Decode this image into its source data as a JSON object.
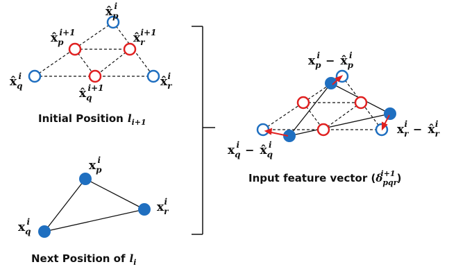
{
  "captions": {
    "initial": "Initial Position",
    "initial_sym": "l",
    "initial_sub": "i+1",
    "next": "Next Position of",
    "next_sym": "l",
    "next_sub": "i",
    "input": "Input feature vector (",
    "input_sym": "δ",
    "input_sub": "pqr",
    "input_sup": "i+1",
    "input_close": ")"
  },
  "labels": {
    "x": "x",
    "xhat": "x̂",
    "p": "p",
    "q": "q",
    "r": "r",
    "i": "i",
    "i1": "i+1",
    "minus": "−"
  },
  "colors": {
    "blue": "#1f6fc0",
    "red": "#e02020",
    "line": "#111111"
  }
}
